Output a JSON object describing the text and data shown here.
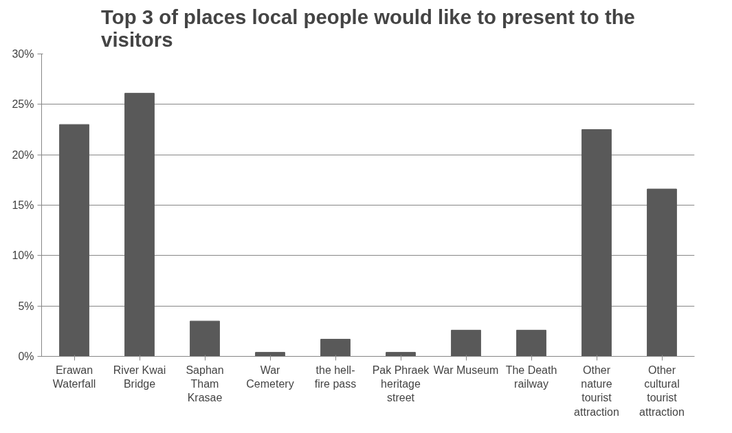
{
  "chart_data": {
    "type": "bar",
    "title": "Top 3 of places local people would like to present to the visitors",
    "categories": [
      "Erawan Waterfall",
      "River Kwai Bridge",
      "Saphan Tham Krasae",
      "War Cemetery",
      "the hell-fire pass",
      "Pak Phraek heritage street",
      "War Museum",
      "The Death railway",
      "Other nature tourist attraction",
      "Other cultural tourist attraction"
    ],
    "values": [
      23.0,
      26.1,
      3.5,
      0.4,
      1.7,
      0.4,
      2.6,
      2.6,
      22.5,
      16.6
    ],
    "color": "#595959",
    "ylim": [
      0,
      30
    ],
    "yticks": [
      {
        "value": 0,
        "label": "0%"
      },
      {
        "value": 5,
        "label": "5%"
      },
      {
        "value": 10,
        "label": "10%"
      },
      {
        "value": 15,
        "label": "15%"
      },
      {
        "value": 20,
        "label": "20%"
      },
      {
        "value": 25,
        "label": "25%"
      },
      {
        "value": 30,
        "label": "30%"
      }
    ],
    "grid": "y"
  }
}
